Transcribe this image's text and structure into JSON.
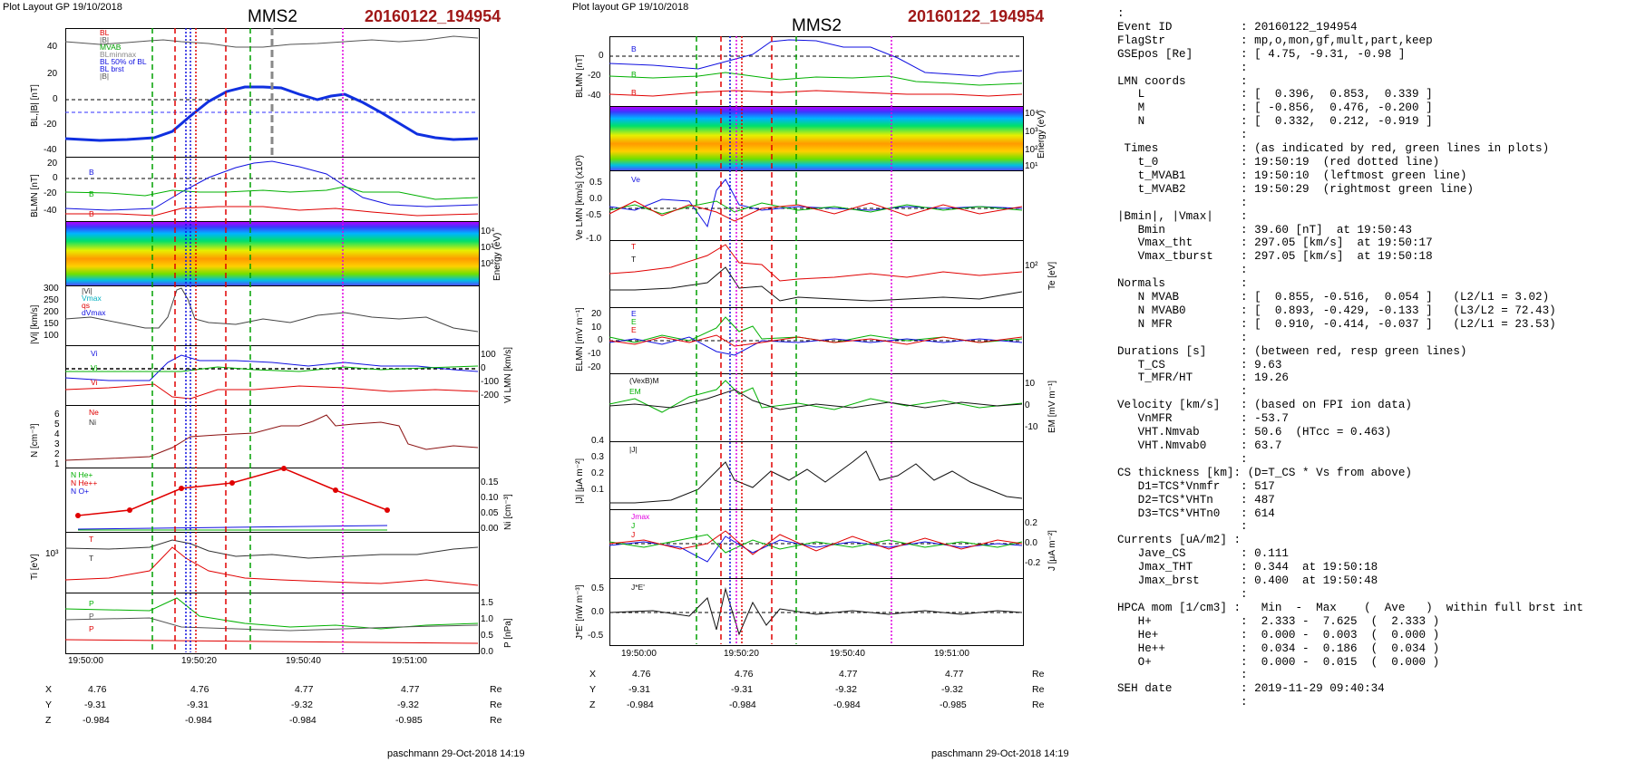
{
  "left_plot": {
    "header_left": "Plot Layout GP 19/10/2018",
    "instrument": "MMS2",
    "event": "20160122_194954",
    "footer": "paschmann 29-Oct-2018 14:19",
    "time_ticks": [
      "19:50:00",
      "19:50:20",
      "19:50:40",
      "19:51:00"
    ],
    "ephemeris": {
      "labels": [
        "X",
        "Y",
        "Z"
      ],
      "unit": "Re",
      "rows": [
        [
          "4.76",
          "4.76",
          "4.77",
          "4.77"
        ],
        [
          "-9.31",
          "-9.31",
          "-9.32",
          "-9.32"
        ],
        [
          "-0.984",
          "-0.984",
          "-0.984",
          "-0.985"
        ]
      ]
    },
    "panels": [
      {
        "ylabel": "BL,|B| [nT]",
        "ticks": [
          "40",
          "20",
          "0",
          "-20",
          "-40"
        ],
        "legend": [
          "BL",
          "|B|",
          "t0",
          "MVAB",
          "BLminmax",
          "BL 50% of BL",
          "BL brst",
          "|B|"
        ]
      },
      {
        "ylabel": "BLMN [nT]",
        "ticks": [
          "20",
          "0",
          "-20",
          "-40"
        ],
        "legend": [
          "B",
          "B",
          "B"
        ]
      },
      {
        "ylabel": "Energy (eV)",
        "ticks": [
          "10⁴",
          "10³",
          "10²"
        ]
      },
      {
        "ylabel": "|Vi| [km/s]",
        "ticks": [
          "300",
          "250",
          "200",
          "150",
          "100"
        ],
        "legend": [
          "|Vi|",
          "Vmax",
          "qs",
          "dVmax"
        ]
      },
      {
        "ylabel": "Vi LMN [km/s]",
        "ticks": [
          "100",
          "0",
          "-100",
          "-200"
        ],
        "legend": [
          "Vi",
          "Vi",
          "Vi"
        ]
      },
      {
        "ylabel": "N [cm⁻³]",
        "ticks": [
          "6",
          "5",
          "4",
          "3",
          "2",
          "1"
        ],
        "legend": [
          "Ne",
          "Ni"
        ]
      },
      {
        "ylabel": "Ni [cm⁻³]",
        "ticks": [
          "0.15",
          "0.10",
          "0.05",
          "0.00"
        ],
        "legend": [
          "N He+",
          "N He++",
          "N O+"
        ]
      },
      {
        "ylabel": "Ti [eV]",
        "ticks": [
          "10³"
        ],
        "legend": [
          "T",
          "T"
        ]
      },
      {
        "ylabel": "P [nPa]",
        "ticks": [
          "1.5",
          "1.0",
          "0.5",
          "0.0"
        ],
        "legend": [
          "P",
          "P",
          "P"
        ]
      }
    ]
  },
  "right_plot": {
    "header_left": "Plot layout GP 19/10/2018",
    "instrument": "MMS2",
    "event": "20160122_194954",
    "footer": "paschmann 29-Oct-2018 14:19",
    "time_ticks": [
      "19:50:00",
      "19:50:20",
      "19:50:40",
      "19:51:00"
    ],
    "ephemeris": {
      "labels": [
        "X",
        "Y",
        "Z"
      ],
      "unit": "Re",
      "rows": [
        [
          "4.76",
          "4.76",
          "4.77",
          "4.77"
        ],
        [
          "-9.31",
          "-9.31",
          "-9.32",
          "-9.32"
        ],
        [
          "-0.984",
          "-0.984",
          "-0.984",
          "-0.985"
        ]
      ]
    },
    "panels": [
      {
        "ylabel": "BLMN [nT]",
        "ticks": [
          "0",
          "-20",
          "-40"
        ],
        "legend": [
          "B",
          "B",
          "B"
        ]
      },
      {
        "ylabel": "Energy (eV)",
        "ticks": [
          "10⁴",
          "10³",
          "10²",
          "10¹"
        ]
      },
      {
        "ylabel": "Ve LMN [km/s] (x10³)",
        "ticks": [
          "0.5",
          "0.0",
          "-0.5",
          "-1.0"
        ],
        "legend": [
          "Ve"
        ]
      },
      {
        "ylabel": "Te [eV]",
        "ticks": [
          "10²"
        ],
        "legend": [
          "T",
          "T"
        ]
      },
      {
        "ylabel": "ELMN [mV m⁻¹]",
        "ticks": [
          "20",
          "10",
          "0",
          "-10",
          "-20"
        ],
        "legend": [
          "E",
          "E",
          "E"
        ]
      },
      {
        "ylabel": "EM [mV m⁻¹]",
        "ticks": [
          "10",
          "0",
          "-10"
        ],
        "legend": [
          "(VexB)M",
          "EM"
        ]
      },
      {
        "ylabel": "|J| [μA m⁻²]",
        "ticks": [
          "0.4",
          "0.3",
          "0.2",
          "0.1"
        ],
        "legend": [
          "|J|"
        ]
      },
      {
        "ylabel": "J [μA m⁻²]",
        "ticks": [
          "0.2",
          "0.0",
          "-0.2"
        ],
        "legend": [
          "Jmax",
          "J",
          "J"
        ]
      },
      {
        "ylabel": "J*E' [nW m⁻³]",
        "ticks": [
          "0.5",
          "0.0",
          "-0.5"
        ],
        "legend": [
          "J*E'"
        ]
      }
    ]
  },
  "info_lines": [
    ":",
    "Event ID          : 20160122_194954",
    "FlagStr           : mp,o,mon,gf,mult,part,keep",
    "GSEpos [Re]       : [ 4.75, -9.31, -0.98 ]",
    "                  :",
    "LMN coords        :",
    "   L              : [  0.396,  0.853,  0.339 ]",
    "   M              : [ -0.856,  0.476, -0.200 ]",
    "   N              : [  0.332,  0.212, -0.919 ]",
    "                  :",
    " Times            : (as indicated by red, green lines in plots)",
    "   t_0            : 19:50:19  (red dotted line)",
    "   t_MVAB1        : 19:50:10  (leftmost green line)",
    "   t_MVAB2        : 19:50:29  (rightmost green line)",
    "                  :",
    "|Bmin|, |Vmax|    :",
    "   Bmin           : 39.60 [nT]  at 19:50:43",
    "   Vmax_tht       : 297.05 [km/s]  at 19:50:17",
    "   Vmax_tburst    : 297.05 [km/s]  at 19:50:18",
    "                  :",
    "Normals           :",
    "   N MVAB         : [  0.855, -0.516,  0.054 ]   (L2/L1 = 3.02)",
    "   N MVAB0        : [  0.893, -0.429, -0.133 ]   (L3/L2 = 72.43)",
    "   N MFR          : [  0.910, -0.414, -0.037 ]   (L2/L1 = 23.53)",
    "                  :",
    "Durations [s]     : (between red, resp green lines)",
    "   T_CS           : 9.63",
    "   T_MFR/HT       : 19.26",
    "                  :",
    "Velocity [km/s]   : (based on FPI ion data)",
    "   VnMFR          : -53.7",
    "   VHT.Nmvab      : 50.6  (HTcc = 0.463)",
    "   VHT.Nmvab0     : 63.7",
    "                  :",
    "CS thickness [km]: (D=T_CS * Vs from above)",
    "   D1=TCS*Vnmfr   : 517",
    "   D2=TCS*VHTn    : 487",
    "   D3=TCS*VHTn0   : 614",
    "                  :",
    "Currents [uA/m2] :",
    "   Jave_CS        : 0.111",
    "   Jmax_THT       : 0.344  at 19:50:18",
    "   Jmax_brst      : 0.400  at 19:50:48",
    "                  :",
    "HPCA mom [1/cm3] :   Min  -  Max    (  Ave   )  within full brst int",
    "   H+             :  2.333 -  7.625  (  2.333 )",
    "   He+            :  0.000 -  0.003  (  0.000 )",
    "   He++           :  0.034 -  0.186  (  0.034 )",
    "   O+             :  0.000 -  0.015  (  0.000 )",
    "                  :",
    "SEH date          : 2019-11-29 09:40:34",
    "                  :"
  ],
  "chart_data": [
    {
      "type": "line",
      "title": "MMS2",
      "series": [
        {
          "name": "BL",
          "x": [
            "19:49:58",
            "19:50:05",
            "19:50:10",
            "19:50:14",
            "19:50:20",
            "19:50:30",
            "19:50:36",
            "19:50:41",
            "19:50:45",
            "19:50:55",
            "19:51:05"
          ],
          "values": [
            -32,
            -33,
            -33,
            -27,
            -5,
            10,
            10,
            3,
            5,
            -12,
            -31
          ]
        },
        {
          "name": "|B|",
          "x": [
            "19:49:58",
            "19:50:10",
            "19:50:14",
            "19:50:20",
            "19:50:30",
            "19:50:40",
            "19:51:05"
          ],
          "values": [
            43,
            44,
            43,
            42,
            42,
            46,
            47
          ]
        }
      ],
      "xlabel": "",
      "ylabel": "BL,|B| [nT]",
      "ylim": [
        -40,
        50
      ]
    },
    {
      "type": "line",
      "series": [
        {
          "name": "He++",
          "x": [
            "19:49:58",
            "19:50:06",
            "19:50:15",
            "19:50:25",
            "19:50:34",
            "19:50:44",
            "19:50:53"
          ],
          "values": [
            0.03,
            0.04,
            0.1,
            0.11,
            0.15,
            0.09,
            0.04
          ]
        },
        {
          "name": "O+",
          "x": [
            "19:49:58",
            "19:50:53"
          ],
          "values": [
            0.0,
            0.01
          ]
        },
        {
          "name": "He+",
          "x": [
            "19:49:58",
            "19:50:53"
          ],
          "values": [
            0.0,
            0.0
          ]
        }
      ],
      "ylabel": "Ni [cm⁻³]",
      "ylim": [
        0,
        0.16
      ]
    },
    {
      "type": "line",
      "series": [
        {
          "name": "|Vi|",
          "x": [
            "19:49:58",
            "19:50:10",
            "19:50:15",
            "19:50:17",
            "19:50:21",
            "19:50:30",
            "19:50:45",
            "19:51:05"
          ],
          "values": [
            140,
            120,
            150,
            297,
            200,
            160,
            180,
            105
          ]
        }
      ],
      "ylabel": "|Vi| [km/s]",
      "ylim": [
        80,
        300
      ]
    }
  ],
  "colors": {
    "event": "#a01818",
    "red": "#e00000",
    "green": "#00a000",
    "blue": "#1010e0",
    "magenta": "#e000e0"
  }
}
